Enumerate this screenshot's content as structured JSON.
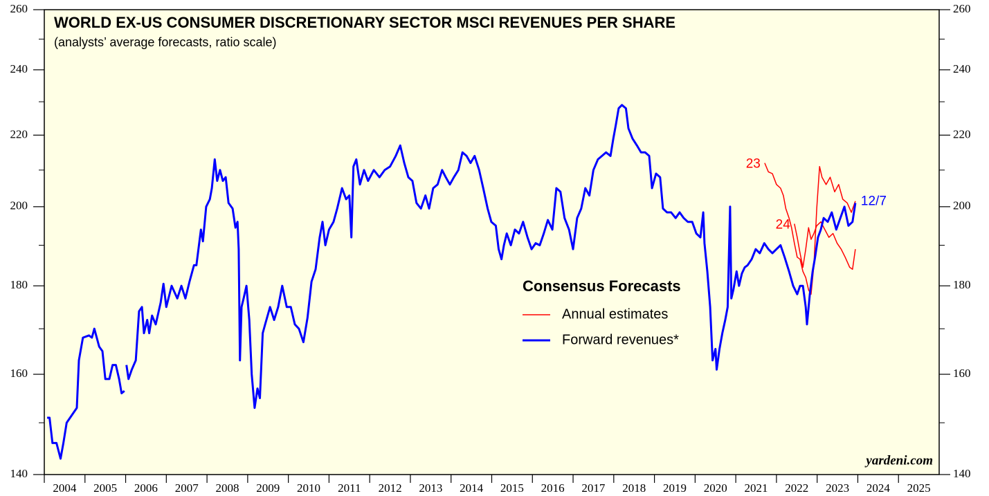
{
  "chart_data": {
    "type": "line",
    "title": "WORLD EX-US CONSUMER DISCRETIONARY SECTOR MSCI REVENUES PER SHARE",
    "subtitle": "(analysts’ average forecasts, ratio scale)",
    "source": "yardeni.com",
    "log_scale": true,
    "grid": false,
    "xlim": [
      2004,
      2026
    ],
    "xticks": [
      2004,
      2005,
      2006,
      2007,
      2008,
      2009,
      2010,
      2011,
      2012,
      2013,
      2014,
      2015,
      2016,
      2017,
      2018,
      2019,
      2020,
      2021,
      2022,
      2023,
      2024,
      2025
    ],
    "ylim": [
      140,
      260
    ],
    "yticks": [
      140,
      160,
      180,
      200,
      220,
      240,
      260
    ],
    "minor_yticks": [
      150,
      170,
      190,
      210,
      230,
      250
    ],
    "legend": {
      "title": "Consensus Forecasts",
      "position": "center"
    },
    "series": [
      {
        "name": "Annual estimates",
        "color": "#ff0000",
        "lines": [
          {
            "label": "23",
            "x": [
              2021.71,
              2021.8,
              2021.9,
              2022.0,
              2022.1,
              2022.17,
              2022.23,
              2022.31,
              2022.37,
              2022.44,
              2022.51,
              2022.58,
              2022.65,
              2022.72,
              2022.79,
              2022.85,
              2022.92,
              2022.99,
              2023.06,
              2023.12,
              2023.22,
              2023.32,
              2023.43,
              2023.53,
              2023.63,
              2023.74,
              2023.84,
              2023.94
            ],
            "values": [
              212,
              209.5,
              209,
              206,
              205,
              203,
              199.5,
              197,
              194.5,
              190.5,
              187,
              186.5,
              183.5,
              182,
              179,
              178,
              185,
              199.5,
              211,
              208,
              206,
              208,
              204,
              206,
              202,
              201,
              198.5,
              201.5
            ]
          },
          {
            "label": "24",
            "x": [
              2022.44,
              2022.51,
              2022.58,
              2022.65,
              2022.72,
              2022.79,
              2022.85,
              2022.92,
              2022.99,
              2023.09,
              2023.19,
              2023.29,
              2023.39,
              2023.49,
              2023.59,
              2023.69,
              2023.8,
              2023.87,
              2023.94
            ],
            "values": [
              195.5,
              192,
              188,
              184.5,
              189,
              194.5,
              191.5,
              193,
              195,
              196,
              194,
              192,
              193,
              190.5,
              189,
              187,
              184.5,
              184,
              189
            ]
          }
        ]
      },
      {
        "name": "Forward revenues*",
        "color": "#0000ff",
        "end_label": "12/7",
        "x": [
          2004.07,
          2004.13,
          2004.2,
          2004.3,
          2004.4,
          2004.47,
          2004.55,
          2004.8,
          2004.85,
          2004.95,
          2005.1,
          2005.17,
          2005.23,
          2005.35,
          2005.43,
          2005.5,
          2005.6,
          2005.68,
          2005.76,
          2005.84,
          2005.9,
          2005.97,
          2006.0,
          2006.02,
          2006.07,
          2006.15,
          2006.25,
          2006.33,
          2006.4,
          2006.45,
          2006.53,
          2006.58,
          2006.65,
          2006.74,
          2006.86,
          2006.93,
          2007.0,
          2007.13,
          2007.27,
          2007.37,
          2007.47,
          2007.57,
          2007.68,
          2007.74,
          2007.85,
          2007.9,
          2007.98,
          2008.07,
          2008.12,
          2008.19,
          2008.25,
          2008.32,
          2008.39,
          2008.46,
          2008.53,
          2008.63,
          2008.7,
          2008.75,
          2008.78,
          2008.81,
          2008.85,
          2008.9,
          2008.97,
          2009.04,
          2009.1,
          2009.17,
          2009.24,
          2009.3,
          2009.37,
          2009.43,
          2009.55,
          2009.65,
          2009.75,
          2009.85,
          2009.96,
          2010.06,
          2010.16,
          2010.26,
          2010.37,
          2010.47,
          2010.57,
          2010.67,
          2010.77,
          2010.84,
          2010.91,
          2011.0,
          2011.11,
          2011.2,
          2011.32,
          2011.42,
          2011.5,
          2011.55,
          2011.6,
          2011.67,
          2011.76,
          2011.86,
          2011.96,
          2012.1,
          2012.24,
          2012.37,
          2012.5,
          2012.64,
          2012.75,
          2012.85,
          2012.95,
          2013.05,
          2013.15,
          2013.26,
          2013.37,
          2013.46,
          2013.56,
          2013.67,
          2013.78,
          2013.87,
          2013.97,
          2014.07,
          2014.18,
          2014.28,
          2014.38,
          2014.48,
          2014.58,
          2014.69,
          2014.79,
          2014.9,
          2014.99,
          2015.1,
          2015.17,
          2015.24,
          2015.3,
          2015.37,
          2015.47,
          2015.57,
          2015.67,
          2015.77,
          2015.88,
          2015.98,
          2016.08,
          2016.18,
          2016.28,
          2016.38,
          2016.49,
          2016.59,
          2016.69,
          2016.79,
          2016.9,
          2017.0,
          2017.1,
          2017.2,
          2017.3,
          2017.4,
          2017.5,
          2017.61,
          2017.71,
          2017.81,
          2017.92,
          2017.99,
          2018.05,
          2018.12,
          2018.2,
          2018.3,
          2018.36,
          2018.46,
          2018.57,
          2018.67,
          2018.77,
          2018.87,
          2018.94,
          2019.04,
          2019.14,
          2019.21,
          2019.31,
          2019.41,
          2019.52,
          2019.62,
          2019.72,
          2019.82,
          2019.93,
          2020.03,
          2020.13,
          2020.2,
          2020.23,
          2020.3,
          2020.37,
          2020.43,
          2020.5,
          2020.53,
          2020.6,
          2020.67,
          2020.74,
          2020.8,
          2020.86,
          2020.89,
          2020.94,
          2021.02,
          2021.08,
          2021.15,
          2021.22,
          2021.29,
          2021.39,
          2021.49,
          2021.59,
          2021.7,
          2021.8,
          2021.9,
          2022.0,
          2022.1,
          2022.2,
          2022.31,
          2022.41,
          2022.51,
          2022.58,
          2022.65,
          2022.72,
          2022.75,
          2022.82,
          2022.89,
          2022.95,
          2023.02,
          2023.09,
          2023.16,
          2023.26,
          2023.36,
          2023.47,
          2023.57,
          2023.67,
          2023.77,
          2023.87,
          2023.94
        ],
        "values": [
          151,
          151,
          146,
          146,
          143,
          146,
          150,
          153,
          163,
          168,
          168.5,
          168,
          170,
          166,
          165,
          159,
          159,
          162,
          162,
          159,
          156,
          156.5,
          null,
          162,
          159,
          161,
          163,
          174,
          175,
          169,
          172,
          169,
          173,
          171,
          176,
          180.5,
          175,
          180,
          177,
          180,
          177,
          181,
          185,
          185,
          194,
          191,
          200,
          202,
          205,
          213,
          207,
          210,
          207,
          208,
          201,
          199.5,
          194.5,
          196,
          189,
          163,
          175,
          177,
          180,
          172,
          160,
          153,
          157,
          155,
          169,
          171,
          175,
          172,
          175,
          180,
          175,
          175,
          171,
          170,
          167,
          172.5,
          181,
          184,
          192,
          196,
          190,
          194,
          196,
          199.5,
          205,
          202,
          203,
          192,
          211,
          213,
          206,
          210,
          207,
          210,
          208,
          210,
          211,
          214,
          217,
          212,
          208,
          207,
          201,
          199.5,
          203,
          199.5,
          205,
          206,
          210,
          208,
          206,
          208,
          210,
          215,
          214,
          212,
          214,
          210,
          205,
          199.5,
          196,
          195,
          189,
          186.5,
          190,
          193,
          190,
          194,
          193,
          196,
          192,
          189,
          190.5,
          190,
          193,
          196.5,
          194,
          205,
          204,
          197,
          194,
          189,
          197,
          199.5,
          205,
          203,
          210,
          213,
          214,
          215,
          214,
          219,
          223,
          228,
          229,
          228,
          222,
          219,
          217,
          215,
          215,
          214,
          205,
          209,
          208,
          199.5,
          198.5,
          198.5,
          197,
          198.5,
          197,
          196,
          196,
          193,
          192,
          198.5,
          190.5,
          183.5,
          175,
          163,
          165.5,
          161,
          165.5,
          169,
          172,
          175,
          200,
          177,
          179,
          183.5,
          180,
          183,
          184.5,
          185,
          186.5,
          189,
          188,
          190.5,
          189,
          188,
          189,
          190,
          187,
          183.5,
          180,
          178,
          180,
          180,
          175,
          171,
          178,
          183.5,
          187,
          192,
          194,
          197,
          196,
          198.5,
          194,
          197,
          200,
          195,
          196,
          201
        ]
      }
    ]
  }
}
